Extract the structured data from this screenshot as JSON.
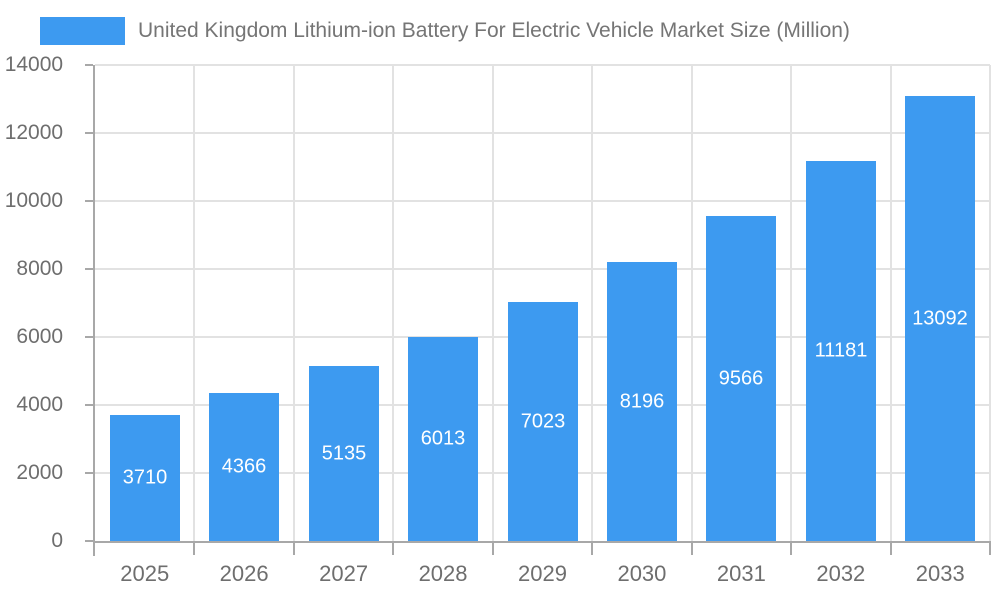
{
  "chart_data": {
    "type": "bar",
    "title": "United Kingdom Lithium-ion Battery For Electric Vehicle Market Size (Million)",
    "categories": [
      "2025",
      "2026",
      "2027",
      "2028",
      "2029",
      "2030",
      "2031",
      "2032",
      "2033"
    ],
    "values": [
      3710,
      4366,
      5135,
      6013,
      7023,
      8196,
      9566,
      11181,
      13092
    ],
    "xlabel": "",
    "ylabel": "",
    "ylim": [
      0,
      14000
    ],
    "yticks": [
      0,
      2000,
      4000,
      6000,
      8000,
      10000,
      12000,
      14000
    ],
    "grid": true,
    "legend_position": "top-left",
    "bar_labels_position": "inside-center",
    "colors": {
      "bar": "#3D9AF0",
      "title_text": "#757575",
      "tick_text": "#6E6E6E",
      "gridline": "#E2E2E2",
      "axis_line": "#A8A8A8",
      "bar_label_text": "#FFFFFF"
    }
  }
}
